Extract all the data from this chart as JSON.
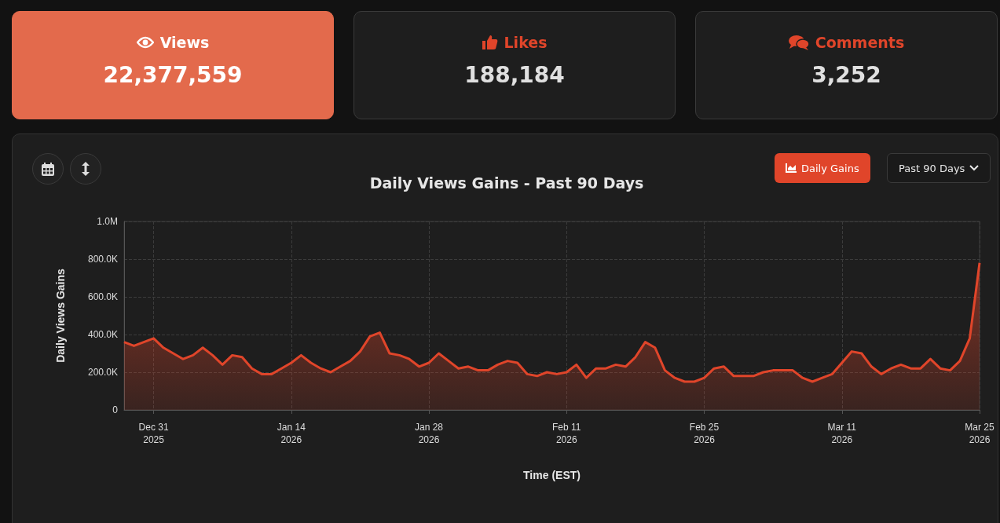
{
  "chart_data": [
    {
      "type": "other",
      "title": "Views",
      "annotations": [
        "22,377,559"
      ]
    },
    {
      "type": "other",
      "title": "Likes",
      "annotations": [
        "188,184"
      ]
    },
    {
      "type": "other",
      "title": "Comments",
      "annotations": [
        "3,252"
      ]
    },
    {
      "type": "area",
      "title": "Daily Views Gains - Past 90 Days",
      "xlabel": "Time (EST)",
      "ylabel": "Daily Views Gains",
      "annotations": [
        "Daily Gains",
        "Past 90 Days"
      ],
      "x": [
        "2025-12-28",
        "2025-12-29",
        "2025-12-30",
        "2025-12-31",
        "2026-01-01",
        "2026-01-02",
        "2026-01-03",
        "2026-01-04",
        "2026-01-05",
        "2026-01-06",
        "2026-01-07",
        "2026-01-08",
        "2026-01-09",
        "2026-01-10",
        "2026-01-11",
        "2026-01-12",
        "2026-01-13",
        "2026-01-14",
        "2026-01-15",
        "2026-01-16",
        "2026-01-17",
        "2026-01-18",
        "2026-01-19",
        "2026-01-20",
        "2026-01-21",
        "2026-01-22",
        "2026-01-23",
        "2026-01-24",
        "2026-01-25",
        "2026-01-26",
        "2026-01-27",
        "2026-01-28",
        "2026-01-29",
        "2026-01-30",
        "2026-01-31",
        "2026-02-01",
        "2026-02-02",
        "2026-02-03",
        "2026-02-04",
        "2026-02-05",
        "2026-02-06",
        "2026-02-07",
        "2026-02-08",
        "2026-02-09",
        "2026-02-10",
        "2026-02-11",
        "2026-02-12",
        "2026-02-13",
        "2026-02-14",
        "2026-02-15",
        "2026-02-16",
        "2026-02-17",
        "2026-02-18",
        "2026-02-19",
        "2026-02-20",
        "2026-02-21",
        "2026-02-22",
        "2026-02-23",
        "2026-02-24",
        "2026-02-25",
        "2026-02-26",
        "2026-02-27",
        "2026-02-28",
        "2026-03-01",
        "2026-03-02",
        "2026-03-03",
        "2026-03-04",
        "2026-03-05",
        "2026-03-06",
        "2026-03-07",
        "2026-03-08",
        "2026-03-09",
        "2026-03-10",
        "2026-03-11",
        "2026-03-12",
        "2026-03-13",
        "2026-03-14",
        "2026-03-15",
        "2026-03-16",
        "2026-03-17",
        "2026-03-18",
        "2026-03-19",
        "2026-03-20",
        "2026-03-21",
        "2026-03-22",
        "2026-03-23",
        "2026-03-24",
        "2026-03-25"
      ],
      "series": [
        {
          "color": "#e0452a",
          "values": [
            360000,
            340000,
            360000,
            380000,
            330000,
            300000,
            270000,
            290000,
            330000,
            290000,
            240000,
            290000,
            280000,
            220000,
            190000,
            190000,
            220000,
            250000,
            290000,
            250000,
            220000,
            200000,
            230000,
            260000,
            310000,
            390000,
            410000,
            300000,
            290000,
            270000,
            230000,
            250000,
            300000,
            260000,
            220000,
            230000,
            210000,
            210000,
            240000,
            260000,
            250000,
            190000,
            180000,
            200000,
            190000,
            200000,
            240000,
            170000,
            220000,
            220000,
            240000,
            230000,
            280000,
            360000,
            330000,
            210000,
            170000,
            150000,
            150000,
            170000,
            220000,
            230000,
            180000,
            180000,
            180000,
            200000,
            210000,
            210000,
            210000,
            170000,
            150000,
            170000,
            190000,
            250000,
            310000,
            300000,
            230000,
            190000,
            220000,
            240000,
            220000,
            220000,
            270000,
            220000,
            210000,
            260000,
            380000,
            780000
          ]
        }
      ],
      "xlim": [
        "2025-12-28",
        "2026-03-25"
      ],
      "xticks": [
        {
          "value": "2025-12-31",
          "label": "Dec 31\n2025"
        },
        {
          "value": "2026-01-14",
          "label": "Jan 14\n2026"
        },
        {
          "value": "2026-01-28",
          "label": "Jan 28\n2026"
        },
        {
          "value": "2026-02-11",
          "label": "Feb 11\n2026"
        },
        {
          "value": "2026-02-25",
          "label": "Feb 25\n2026"
        },
        {
          "value": "2026-03-11",
          "label": "Mar 11\n2026"
        },
        {
          "value": "2026-03-25",
          "label": "Mar 25\n2026"
        }
      ],
      "ylim": [
        0,
        1000000
      ],
      "yticks": [
        {
          "value": 0,
          "label": "0"
        },
        {
          "value": 200000,
          "label": "200.0K"
        },
        {
          "value": 400000,
          "label": "400.0K"
        },
        {
          "value": 600000,
          "label": "600.0K"
        },
        {
          "value": 800000,
          "label": "800.0K"
        },
        {
          "value": 1000000,
          "label": "1.0M"
        }
      ],
      "grid": true,
      "marker": "none",
      "line_style": "solid"
    }
  ]
}
